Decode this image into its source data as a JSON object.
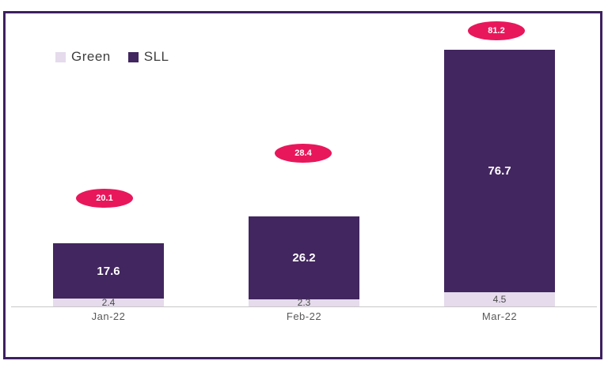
{
  "chart_data": {
    "type": "bar",
    "stacked": true,
    "title": "",
    "xlabel": "",
    "ylabel": "",
    "grid": false,
    "legend_position": "top-left",
    "ylim": [
      0,
      85
    ],
    "categories": [
      "Jan-22",
      "Feb-22",
      "Mar-22"
    ],
    "series": [
      {
        "name": "Green",
        "color": "#E5DBEC",
        "values": [
          2.4,
          2.3,
          4.5
        ]
      },
      {
        "name": "SLL",
        "color": "#42265F",
        "values": [
          17.6,
          26.2,
          76.7
        ]
      }
    ],
    "totals": [
      20.1,
      28.4,
      81.2
    ]
  },
  "colors": {
    "badge": "#E8175C",
    "frame_border": "#3D2060",
    "axis_line": "#C8C8C8",
    "tick_label": "#595959",
    "sll_value_text": "#FFFFFF",
    "green_value_text": "#4A4A4A"
  }
}
